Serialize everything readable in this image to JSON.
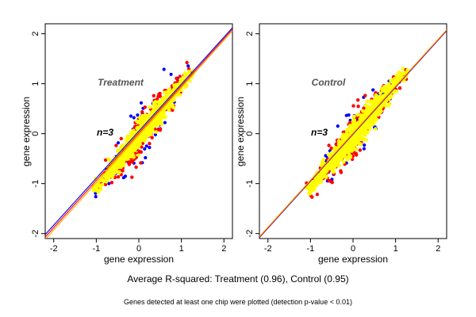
{
  "colors": {
    "background": "#ffffff",
    "axis": "#000000",
    "blue": "#0000ff",
    "red": "#ff0000",
    "yellow": "#ffff00",
    "orange_line": "#ffa500",
    "panel_title": "#555555"
  },
  "caption": "Average R-squared: Treatment (0.96), Control (0.95)",
  "footnote": "Genes detected at least one chip were plotted (detection p-value < 0.01)",
  "chart_data": [
    {
      "type": "scatter",
      "title": "Treatment",
      "annotation": "n=3",
      "xlabel": "gene expression",
      "ylabel": "gene expression",
      "xlim": [
        -2.2,
        2.2
      ],
      "ylim": [
        -2.1,
        2.2
      ],
      "xticks": [
        -2,
        -1,
        0,
        1,
        2
      ],
      "yticks": [
        -2,
        -1,
        0,
        1,
        2
      ],
      "grid": false,
      "point_cloud": {
        "x_range": [
          -1.0,
          1.2
        ],
        "y_range": [
          -1.1,
          1.2
        ],
        "color_layers": [
          "blue",
          "red",
          "yellow"
        ]
      },
      "fit_lines": [
        {
          "color": "blue",
          "x": [
            -2.2,
            2.2
          ],
          "y": [
            -2.02,
            2.12
          ]
        },
        {
          "color": "red",
          "x": [
            -2.2,
            2.2
          ],
          "y": [
            -2.07,
            2.09
          ]
        },
        {
          "color": "orange_line",
          "x": [
            -2.2,
            2.2
          ],
          "y": [
            -2.12,
            2.06
          ]
        }
      ]
    },
    {
      "type": "scatter",
      "title": "Control",
      "annotation": "n=3",
      "xlabel": "gene expression",
      "ylabel": "gene expression",
      "xlim": [
        -2.2,
        2.2
      ],
      "ylim": [
        -2.1,
        2.2
      ],
      "xticks": [
        -2,
        -1,
        0,
        1,
        2
      ],
      "yticks": [
        -2,
        -1,
        0,
        1,
        2
      ],
      "grid": false,
      "point_cloud": {
        "x_range": [
          -1.0,
          1.2
        ],
        "y_range": [
          -1.1,
          1.2
        ],
        "color_layers": [
          "blue",
          "red",
          "yellow"
        ]
      },
      "fit_lines": [
        {
          "color": "blue",
          "x": [
            -2.2,
            2.2
          ],
          "y": [
            -2.08,
            2.06
          ]
        },
        {
          "color": "red",
          "x": [
            -2.2,
            2.2
          ],
          "y": [
            -2.07,
            2.07
          ]
        },
        {
          "color": "orange_line",
          "x": [
            -2.2,
            2.2
          ],
          "y": [
            -2.06,
            2.08
          ]
        }
      ]
    }
  ]
}
